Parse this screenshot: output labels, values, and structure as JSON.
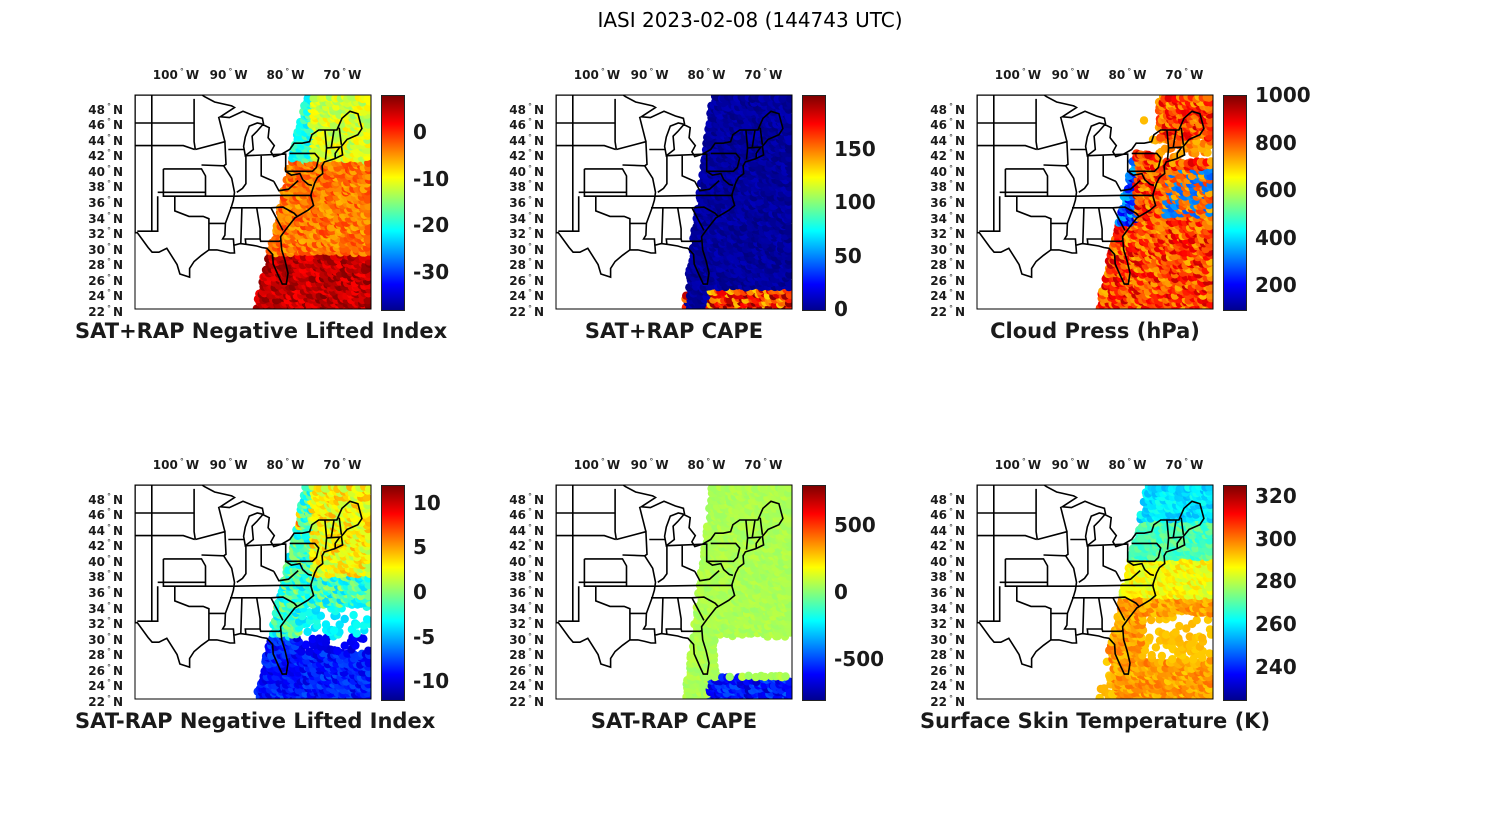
{
  "title": "IASI 2023-02-08 (144743 UTC)",
  "lon_labels": [
    "100",
    "90",
    "80",
    "70"
  ],
  "lon_hemisphere": "W",
  "lat_labels": [
    "48",
    "46",
    "44",
    "42",
    "40",
    "38",
    "36",
    "34",
    "32",
    "30",
    "28",
    "26",
    "24",
    "22"
  ],
  "lat_hemisphere": "N",
  "colormap": "jet",
  "panels": [
    {
      "title": "SAT+RAP Negative Lifted Index",
      "ticks": [
        "0",
        "-10",
        "-20",
        "-30"
      ],
      "range": [
        -38,
        8
      ],
      "tick_values": [
        0,
        -10,
        -20,
        -30
      ],
      "field": "li_total"
    },
    {
      "title": "SAT+RAP CAPE",
      "ticks": [
        "150",
        "100",
        "50",
        "0"
      ],
      "range": [
        0,
        200
      ],
      "tick_values": [
        150,
        100,
        50,
        0
      ],
      "field": "cape_total"
    },
    {
      "title": "Cloud Press (hPa)",
      "ticks": [
        "1000",
        "800",
        "600",
        "400",
        "200"
      ],
      "range": [
        100,
        1000
      ],
      "tick_values": [
        1000,
        800,
        600,
        400,
        200
      ],
      "field": "cloud_press"
    },
    {
      "title": "SAT-RAP Negative Lifted Index",
      "ticks": [
        "10",
        "5",
        "0",
        "-5",
        "-10"
      ],
      "range": [
        -12,
        12
      ],
      "tick_values": [
        10,
        5,
        0,
        -5,
        -10
      ],
      "field": "li_diff"
    },
    {
      "title": "SAT-RAP CAPE",
      "ticks": [
        "500",
        "0",
        "-500"
      ],
      "range": [
        -800,
        800
      ],
      "tick_values": [
        500,
        0,
        -500
      ],
      "field": "cape_diff"
    },
    {
      "title": "Surface Skin Temperature (K)",
      "ticks": [
        "320",
        "300",
        "280",
        "260",
        "240"
      ],
      "range": [
        225,
        325
      ],
      "tick_values": [
        320,
        300,
        280,
        260,
        240
      ],
      "field": "skin_temp"
    }
  ]
}
